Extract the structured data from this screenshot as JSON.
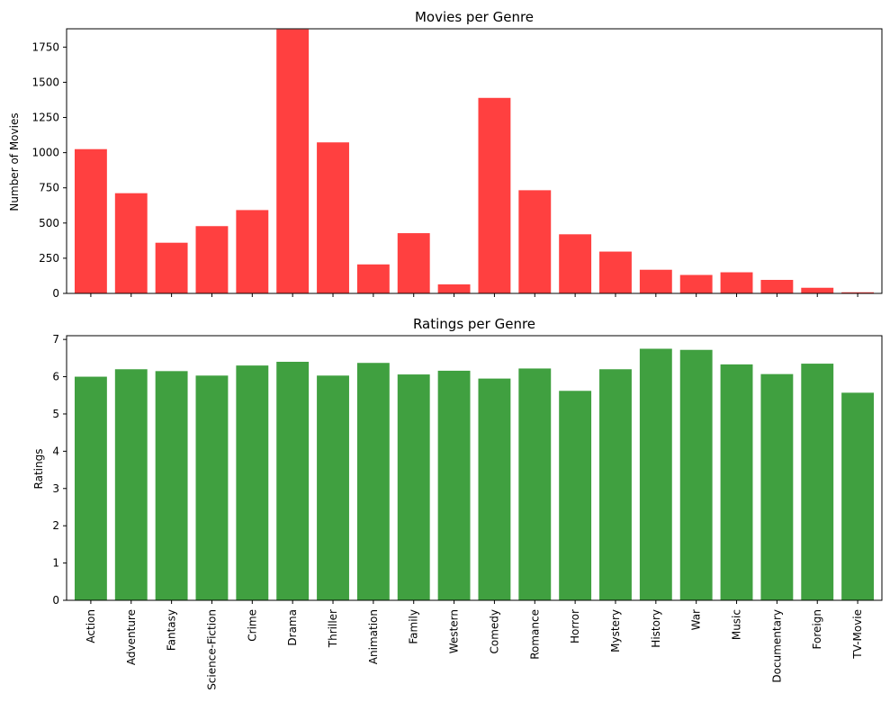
{
  "chart_data": [
    {
      "type": "bar",
      "title": "Movies per Genre",
      "xlabel": "",
      "ylabel": "Number of Movies",
      "ylim": [
        0,
        1880
      ],
      "yticks": [
        0,
        250,
        500,
        750,
        1000,
        1250,
        1500,
        1750
      ],
      "grid": false,
      "color": "#ff4040",
      "categories": [
        "Action",
        "Adventure",
        "Fantasy",
        "Science-Fiction",
        "Crime",
        "Drama",
        "Thriller",
        "Animation",
        "Family",
        "Western",
        "Comedy",
        "Romance",
        "Horror",
        "Mystery",
        "History",
        "War",
        "Music",
        "Documentary",
        "Foreign",
        "TV-Movie"
      ],
      "values": [
        1025,
        712,
        360,
        478,
        592,
        1876,
        1073,
        206,
        428,
        64,
        1389,
        733,
        420,
        297,
        168,
        131,
        150,
        96,
        40,
        8
      ]
    },
    {
      "type": "bar",
      "title": "Ratings per Genre",
      "xlabel": "",
      "ylabel": "Ratings",
      "ylim": [
        0,
        7.1
      ],
      "yticks": [
        0,
        1,
        2,
        3,
        4,
        5,
        6,
        7
      ],
      "grid": false,
      "color": "#40a040",
      "categories": [
        "Action",
        "Adventure",
        "Fantasy",
        "Science-Fiction",
        "Crime",
        "Drama",
        "Thriller",
        "Animation",
        "Family",
        "Western",
        "Comedy",
        "Romance",
        "Horror",
        "Mystery",
        "History",
        "War",
        "Music",
        "Documentary",
        "Foreign",
        "TV-Movie"
      ],
      "values": [
        6.0,
        6.2,
        6.15,
        6.03,
        6.3,
        6.4,
        6.03,
        6.37,
        6.06,
        6.16,
        5.95,
        6.22,
        5.62,
        6.2,
        6.75,
        6.72,
        6.33,
        6.07,
        6.35,
        5.57
      ]
    }
  ]
}
